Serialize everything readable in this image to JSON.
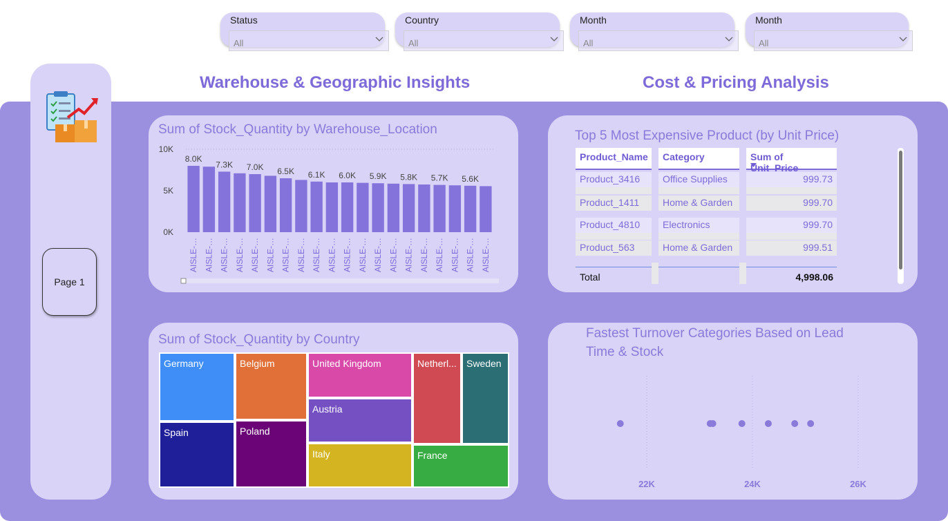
{
  "filters": [
    {
      "label": "Status",
      "value": "All"
    },
    {
      "label": "Country",
      "value": "All"
    },
    {
      "label": "Month",
      "value": "All"
    },
    {
      "label": "Month",
      "value": "All"
    }
  ],
  "nav": {
    "page_button": "Page 1"
  },
  "sections": {
    "left": "Warehouse & Geographic Insights",
    "right": "Cost & Pricing Analysis"
  },
  "bar_chart": {
    "title": "Sum of Stock_Quantity by Warehouse_Location",
    "y_ticks": [
      "10K",
      "5K",
      "0K"
    ],
    "category_label": "AISLE-…",
    "data_labels": [
      "8.0K",
      "7.3K",
      "7.0K",
      "6.5K",
      "6.1K",
      "6.0K",
      "5.9K",
      "5.8K",
      "5.7K",
      "5.6K"
    ],
    "bar_color": "#8573dc"
  },
  "table": {
    "title": "Top 5 Most Expensive Product (by Unit Price)",
    "columns": [
      "Product_Name",
      "Category",
      "Sum of Unit_Price"
    ],
    "rows": [
      {
        "name": "Product_3416",
        "category": "Office Supplies",
        "price": "999.73"
      },
      {
        "name": "Product_1411",
        "category": "Home & Garden",
        "price": "999.70"
      },
      {
        "name": "Product_4810",
        "category": "Electronics",
        "price": "999.70"
      },
      {
        "name": "Product_563",
        "category": "Home & Garden",
        "price": "999.51"
      }
    ],
    "total_label": "Total",
    "total_value": "4,998.06"
  },
  "treemap": {
    "title": "Sum of Stock_Quantity by Country",
    "cells": [
      {
        "label": "Germany",
        "color": "#3f8ef7"
      },
      {
        "label": "Spain",
        "color": "#1f1f9a"
      },
      {
        "label": "Belgium",
        "color": "#e07038"
      },
      {
        "label": "Poland",
        "color": "#6b0577"
      },
      {
        "label": "United Kingdom",
        "color": "#d94aa8"
      },
      {
        "label": "Austria",
        "color": "#7550c2"
      },
      {
        "label": "Italy",
        "color": "#d4b420"
      },
      {
        "label": "Netherl...",
        "color": "#cf4a52"
      },
      {
        "label": "Sweden",
        "color": "#2b6e74"
      },
      {
        "label": "France",
        "color": "#37ac43"
      }
    ]
  },
  "scatter": {
    "title_line1": "Fastest Turnover Categories Based on Lead",
    "title_line2": "Time & Stock",
    "x_ticks": [
      "22K",
      "24K",
      "26K"
    ]
  },
  "chart_data": [
    {
      "type": "bar",
      "title": "Sum of Stock_Quantity by Warehouse_Location",
      "categories": [
        "AISLE-…",
        "AISLE-…",
        "AISLE-…",
        "AISLE-…",
        "AISLE-…",
        "AISLE-…",
        "AISLE-…",
        "AISLE-…",
        "AISLE-…",
        "AISLE-…",
        "AISLE-…",
        "AISLE-…",
        "AISLE-…",
        "AISLE-…",
        "AISLE-…",
        "AISLE-…",
        "AISLE-…",
        "AISLE-…",
        "AISLE-…",
        "AISLE-…"
      ],
      "values": [
        8000,
        7900,
        7300,
        7100,
        7000,
        6800,
        6500,
        6300,
        6100,
        6000,
        6000,
        5950,
        5900,
        5850,
        5800,
        5750,
        5700,
        5650,
        5600,
        5550
      ],
      "ylim": [
        0,
        10000
      ]
    },
    {
      "type": "scatter",
      "title": "Fastest Turnover Categories Based on Lead Time & Stock",
      "x": [
        21500,
        23200,
        23250,
        23800,
        24300,
        24800,
        25100
      ],
      "y": [
        1,
        1,
        1,
        1,
        1,
        1,
        1
      ],
      "xlim": [
        21000,
        26000
      ]
    }
  ]
}
